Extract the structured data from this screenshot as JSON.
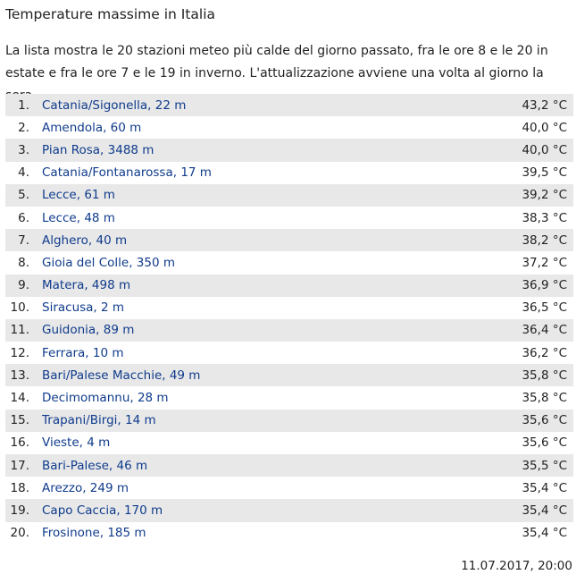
{
  "title": "Temperature massime in Italia",
  "intro": "La lista mostra le 20 stazioni meteo più calde del giorno passato, fra le ore 8 e le 20 in estate e fra le ore 7 e le 19 in inverno. L'attualizzazione avviene una volta al giorno la sera.",
  "rows": [
    {
      "rank": "1.",
      "station": "Catania/Sigonella, 22 m",
      "temp": "43,2 °C"
    },
    {
      "rank": "2.",
      "station": "Amendola, 60 m",
      "temp": "40,0 °C"
    },
    {
      "rank": "3.",
      "station": "Pian Rosa, 3488 m",
      "temp": "40,0 °C"
    },
    {
      "rank": "4.",
      "station": "Catania/Fontanarossa, 17 m",
      "temp": "39,5 °C"
    },
    {
      "rank": "5.",
      "station": "Lecce, 61 m",
      "temp": "39,2 °C"
    },
    {
      "rank": "6.",
      "station": "Lecce, 48 m",
      "temp": "38,3 °C"
    },
    {
      "rank": "7.",
      "station": "Alghero, 40 m",
      "temp": "38,2 °C"
    },
    {
      "rank": "8.",
      "station": "Gioia del Colle, 350 m",
      "temp": "37,2 °C"
    },
    {
      "rank": "9.",
      "station": "Matera, 498 m",
      "temp": "36,9 °C"
    },
    {
      "rank": "10.",
      "station": "Siracusa, 2 m",
      "temp": "36,5 °C"
    },
    {
      "rank": "11.",
      "station": "Guidonia, 89 m",
      "temp": "36,4 °C"
    },
    {
      "rank": "12.",
      "station": "Ferrara, 10 m",
      "temp": "36,2 °C"
    },
    {
      "rank": "13.",
      "station": "Bari/Palese Macchie, 49 m",
      "temp": "35,8 °C"
    },
    {
      "rank": "14.",
      "station": "Decimomannu, 28 m",
      "temp": "35,8 °C"
    },
    {
      "rank": "15.",
      "station": "Trapani/Birgi, 14 m",
      "temp": "35,6 °C"
    },
    {
      "rank": "16.",
      "station": "Vieste, 4 m",
      "temp": "35,6 °C"
    },
    {
      "rank": "17.",
      "station": "Bari-Palese, 46 m",
      "temp": "35,5 °C"
    },
    {
      "rank": "18.",
      "station": "Arezzo, 249 m",
      "temp": "35,4 °C"
    },
    {
      "rank": "19.",
      "station": "Capo Caccia, 170 m",
      "temp": "35,4 °C"
    },
    {
      "rank": "20.",
      "station": "Frosinone, 185 m",
      "temp": "35,4 °C"
    }
  ],
  "timestamp": "11.07.2017, 20:00",
  "colors": {
    "link": "#0f3b8c",
    "stripe": "#e8e8e8",
    "text": "#222222"
  }
}
